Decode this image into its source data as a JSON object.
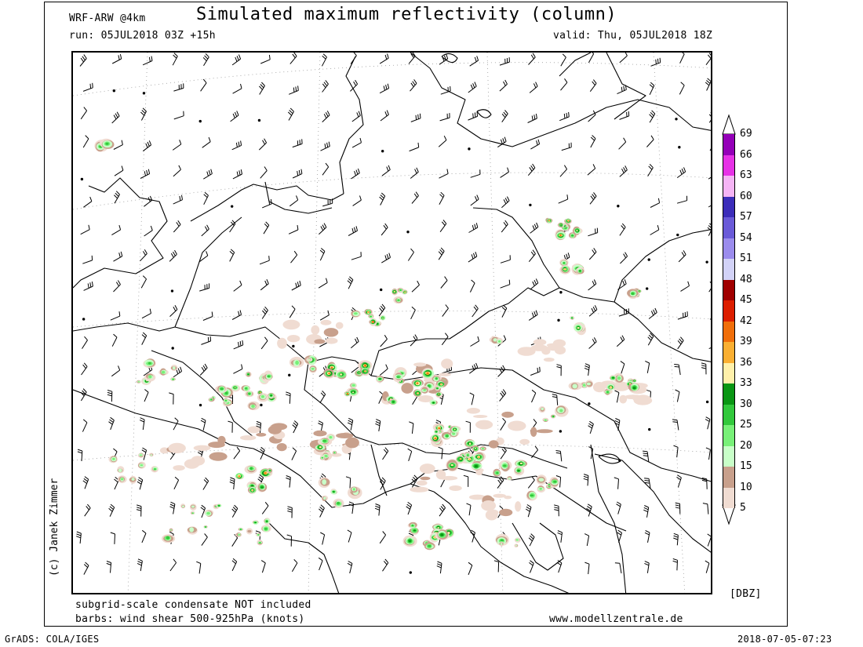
{
  "header": {
    "model": "WRF-ARW @4km",
    "title": "Simulated maximum reflectivity (column)",
    "run": "run: 05JUL2018 03Z +15h",
    "valid": "valid: Thu, 05JUL2018 18Z"
  },
  "footer": {
    "note1": "subgrid-scale condensate NOT included",
    "note2": "barbs: wind shear 500-925hPa (knots)",
    "website": "www.modellzentrale.de",
    "grads": "GrADS: COLA/IGES",
    "timestamp": "2018-07-05-07:23"
  },
  "credit": "(c) Janek Zimmer",
  "legend": {
    "unit": "[DBZ]",
    "levels": [
      {
        "label": "69",
        "color": "#9400b8"
      },
      {
        "label": "66",
        "color": "#e632e6"
      },
      {
        "label": "63",
        "color": "#f5b4f5"
      },
      {
        "label": "60",
        "color": "#3c2db9"
      },
      {
        "label": "57",
        "color": "#6a5ad8"
      },
      {
        "label": "54",
        "color": "#9b8ced"
      },
      {
        "label": "51",
        "color": "#d2d2f7"
      },
      {
        "label": "48",
        "color": "#a00000"
      },
      {
        "label": "45",
        "color": "#dc1e00"
      },
      {
        "label": "42",
        "color": "#f06e0a"
      },
      {
        "label": "39",
        "color": "#faaf32"
      },
      {
        "label": "36",
        "color": "#fff0aa"
      },
      {
        "label": "33",
        "color": "#0a9614"
      },
      {
        "label": "30",
        "color": "#32c83c"
      },
      {
        "label": "25",
        "color": "#78f078"
      },
      {
        "label": "20",
        "color": "#c8ffc8"
      },
      {
        "label": "15",
        "color": "#c8a08c"
      },
      {
        "label": "10",
        "color": "#f0dcd2"
      },
      {
        "label": "5",
        "color": ""
      }
    ]
  }
}
